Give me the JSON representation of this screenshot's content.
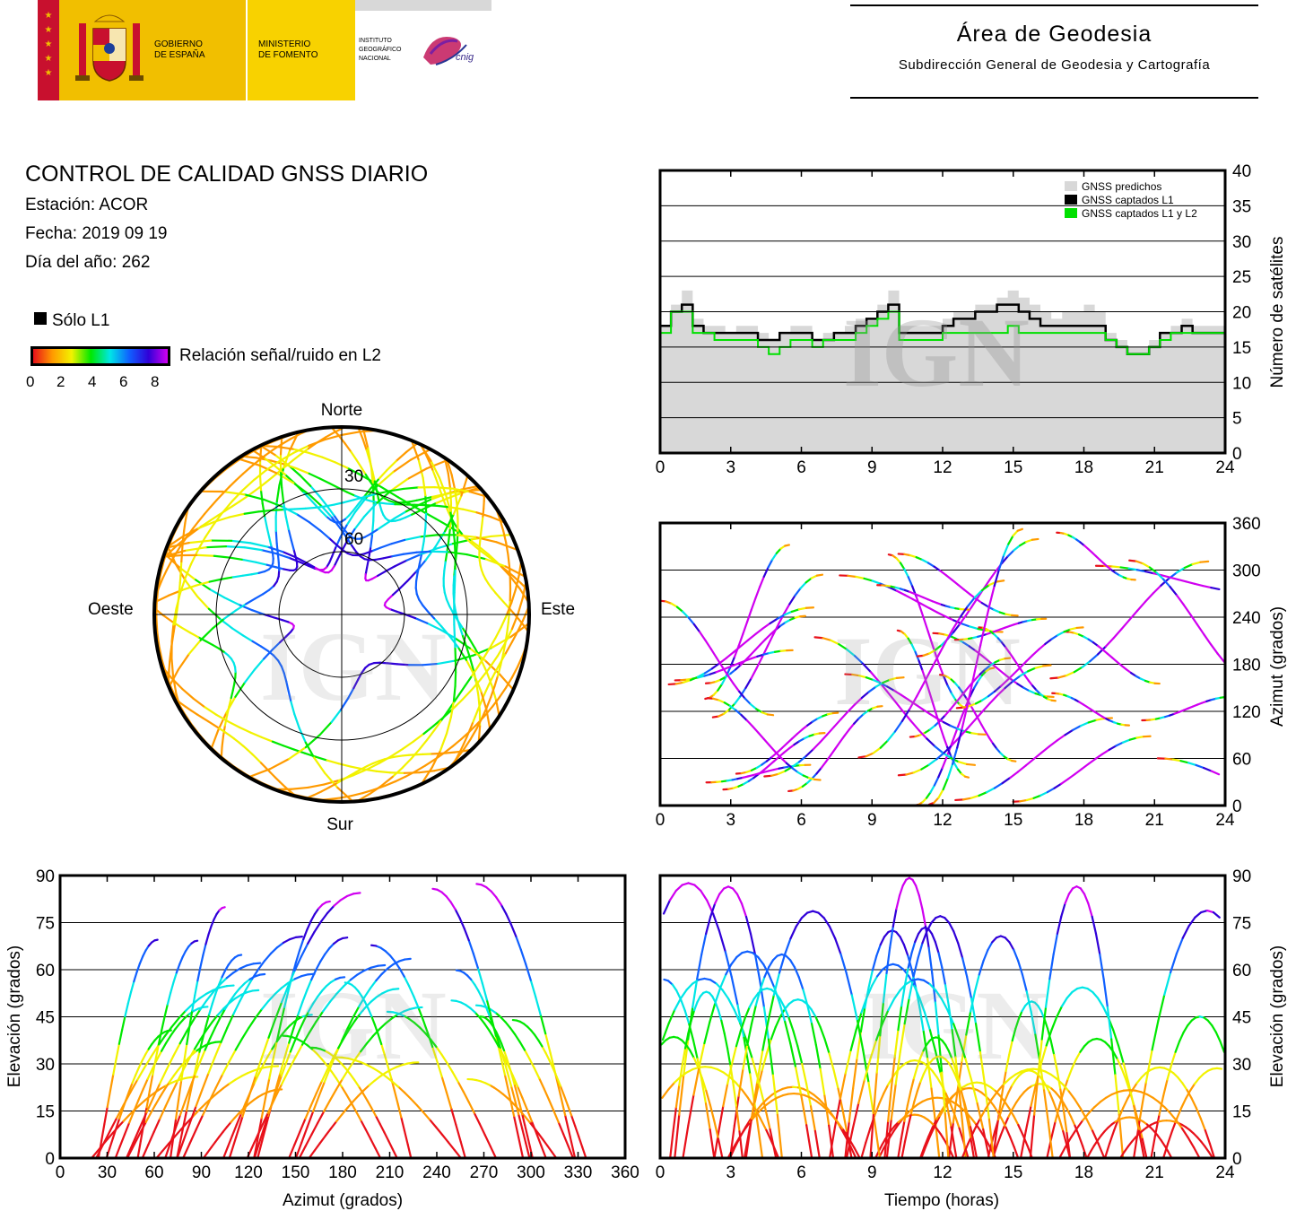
{
  "header": {
    "gov_text_1": "GOBIERNO",
    "gov_text_2": "DE ESPAÑA",
    "min_text_1": "MINISTERIO",
    "min_text_2": "DE FOMENTO",
    "inst_text_1": "INSTITUTO",
    "inst_text_2": "GEOGRÁFICO",
    "inst_text_3": "NACIONAL",
    "cnig_text": "cnig",
    "area_title": "Área de Geodesia",
    "area_subtitle": "Subdirección General de Geodesia y Cartografía",
    "colors": {
      "spain_red": "#c8102e",
      "spain_yellow": "#f1bf00",
      "ministry_yellow": "#f8d200"
    }
  },
  "info": {
    "title": "CONTROL DE CALIDAD GNSS DIARIO",
    "station": "Estación: ACOR",
    "date": "Fecha: 2019 09 19",
    "doy": "Día del año: 262"
  },
  "legend": {
    "solo_l1": "Sólo L1",
    "snr_label": "Relación señal/ruido en L2",
    "snr_ticks": [
      "0",
      "2",
      "4",
      "6",
      "8"
    ],
    "snr_colors": [
      "#e8101a",
      "#ff9a00",
      "#f2f200",
      "#00e800",
      "#00e6e6",
      "#1060ff",
      "#3000d8",
      "#d000f0"
    ]
  },
  "watermark": "IGN",
  "chart_data": [
    {
      "id": "skyplot",
      "type": "scatter",
      "title": "",
      "labels": {
        "north": "Norte",
        "south": "Sur",
        "east": "Este",
        "west": "Oeste"
      },
      "elevation_rings": [
        "30",
        "60"
      ],
      "note": "polar sky plot of satellite tracks"
    },
    {
      "id": "sat_count",
      "type": "area",
      "x_ticks": [
        "0",
        "3",
        "6",
        "9",
        "12",
        "15",
        "18",
        "21",
        "24"
      ],
      "y_ticks": [
        "0",
        "5",
        "10",
        "15",
        "20",
        "25",
        "30",
        "35",
        "40"
      ],
      "ylabel": "Número de satélites",
      "xlim": [
        0,
        24
      ],
      "ylim": [
        0,
        40
      ],
      "legend": [
        "GNSS predichos",
        "GNSS captados L1",
        "GNSS captados L1 y L2"
      ],
      "legend_position": "top-right",
      "series": [
        {
          "name": "GNSS predichos",
          "color": "#d8d8d8",
          "values": [
            18,
            21,
            23,
            19,
            18,
            18,
            17,
            18,
            18,
            17,
            16,
            17,
            18,
            18,
            16,
            17,
            17,
            18,
            19,
            19,
            21,
            23,
            18,
            18,
            18,
            18,
            19,
            20,
            20,
            21,
            21,
            22,
            23,
            22,
            21,
            20,
            19,
            20,
            20,
            21,
            20,
            17,
            16,
            15,
            15,
            16,
            17,
            18,
            19,
            18,
            18,
            18
          ]
        },
        {
          "name": "GNSS captados L1",
          "color": "#000000",
          "values": [
            18,
            20,
            21,
            18,
            17,
            17,
            17,
            17,
            17,
            16,
            16,
            17,
            17,
            17,
            16,
            16,
            17,
            17,
            18,
            19,
            20,
            21,
            17,
            17,
            17,
            17,
            18,
            19,
            19,
            20,
            20,
            21,
            21,
            20,
            19,
            18,
            18,
            18,
            18,
            18,
            18,
            16,
            15,
            14,
            14,
            15,
            17,
            17,
            18,
            17,
            17,
            17
          ]
        },
        {
          "name": "GNSS captados L1 y L2",
          "color": "#00e000",
          "values": [
            17,
            20,
            20,
            17,
            17,
            16,
            16,
            16,
            16,
            15,
            14,
            15,
            16,
            16,
            15,
            16,
            16,
            16,
            17,
            18,
            19,
            20,
            16,
            16,
            16,
            16,
            17,
            17,
            17,
            17,
            17,
            17,
            18,
            17,
            17,
            17,
            17,
            17,
            17,
            17,
            17,
            16,
            15,
            14,
            14,
            15,
            16,
            17,
            17,
            17,
            17,
            17
          ]
        }
      ]
    },
    {
      "id": "azimuth_time",
      "type": "scatter",
      "x_ticks": [
        "0",
        "3",
        "6",
        "9",
        "12",
        "15",
        "18",
        "21",
        "24"
      ],
      "y_ticks": [
        "0",
        "60",
        "120",
        "180",
        "240",
        "300",
        "360"
      ],
      "ylabel": "Azimut (grados)",
      "xlim": [
        0,
        24
      ],
      "ylim": [
        0,
        360
      ]
    },
    {
      "id": "elevation_azimuth",
      "type": "scatter",
      "x_ticks": [
        "0",
        "30",
        "60",
        "90",
        "120",
        "150",
        "180",
        "210",
        "240",
        "270",
        "300",
        "330",
        "360"
      ],
      "y_ticks": [
        "0",
        "15",
        "30",
        "45",
        "60",
        "75",
        "90"
      ],
      "xlabel": "Azimut (grados)",
      "ylabel": "Elevación (grados)",
      "xlim": [
        0,
        360
      ],
      "ylim": [
        0,
        90
      ]
    },
    {
      "id": "elevation_time",
      "type": "scatter",
      "x_ticks": [
        "0",
        "3",
        "6",
        "9",
        "12",
        "15",
        "18",
        "21",
        "24"
      ],
      "y_ticks": [
        "0",
        "15",
        "30",
        "45",
        "60",
        "75",
        "90"
      ],
      "xlabel": "Tiempo (horas)",
      "ylabel": "Elevación (grados)",
      "xlim": [
        0,
        24
      ],
      "ylim": [
        0,
        90
      ]
    }
  ]
}
